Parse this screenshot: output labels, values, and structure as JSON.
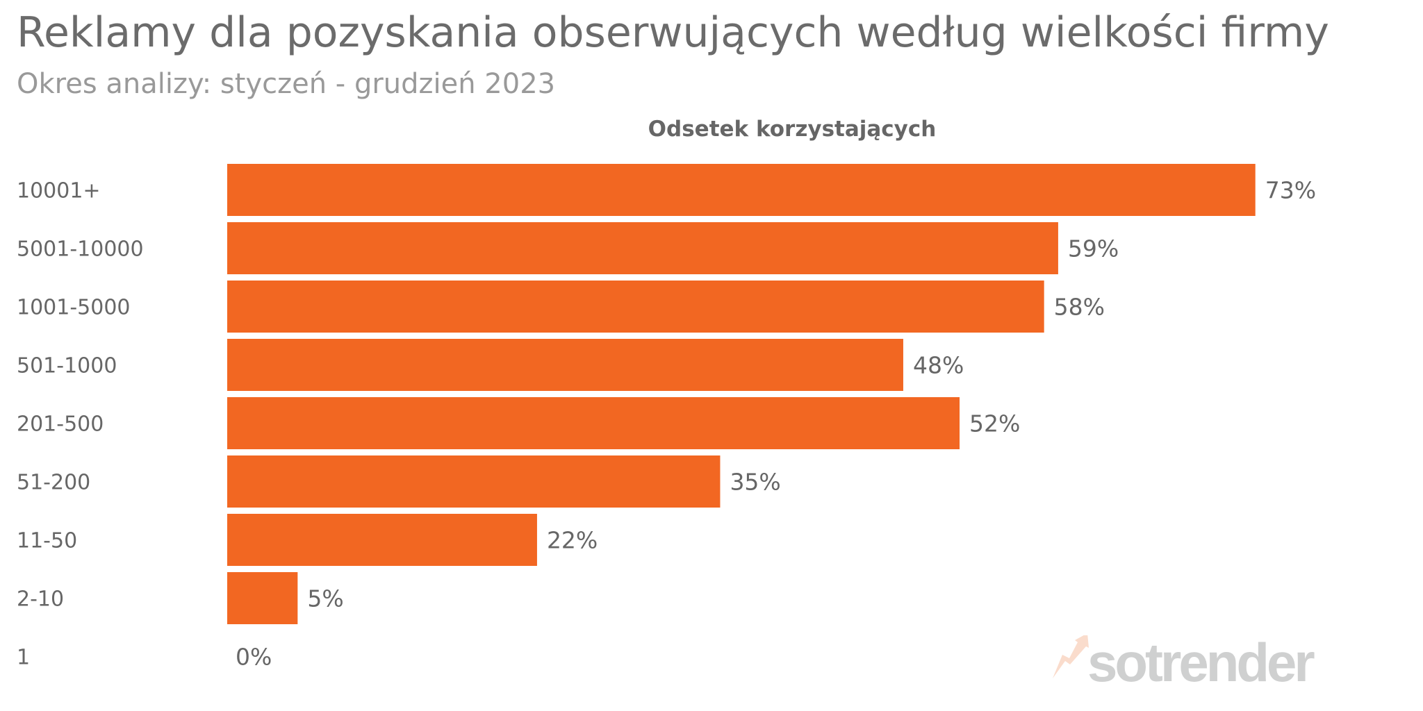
{
  "header": {
    "title": "Reklamy dla pozyskania obserwujących według wielkości firmy",
    "subtitle": "Okres analizy: styczeń - grudzień 2023"
  },
  "chart_data": {
    "type": "bar",
    "orientation": "horizontal",
    "title": "Reklamy dla pozyskania obserwujących według wielkości firmy",
    "subtitle": "Okres analizy: styczeń - grudzień 2023",
    "series_title": "Odsetek korzystających",
    "categories": [
      "10001+",
      "5001-10000",
      "1001-5000",
      "501-1000",
      "201-500",
      "51-200",
      "11-50",
      "2-10",
      "1"
    ],
    "values": [
      73,
      59,
      58,
      48,
      52,
      35,
      22,
      5,
      0
    ],
    "value_labels": [
      "73%",
      "59%",
      "58%",
      "48%",
      "52%",
      "35%",
      "22%",
      "5%",
      "0%"
    ],
    "xlim": [
      0,
      100
    ],
    "grid": false,
    "bar_color": "#F26722"
  },
  "branding": {
    "logo_text": "sotrender"
  }
}
